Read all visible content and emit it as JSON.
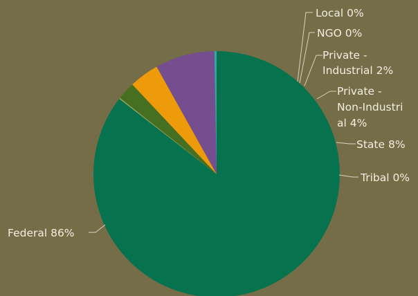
{
  "chart_data": {
    "type": "pie",
    "start_angle_deg": 90,
    "direction": "counterclockwise",
    "slices": [
      {
        "label": "Tribal 0%",
        "value": 0.3,
        "color": "#3ba3a3"
      },
      {
        "label": "State 8%",
        "value": 7.8,
        "color": "#744e8f"
      },
      {
        "label": "Private - Non-Industrial 4%",
        "value": 3.9,
        "color": "#ee9b0b"
      },
      {
        "label": "Private - Industrial 2%",
        "value": 2.3,
        "color": "#476f22"
      },
      {
        "label": "NGO 0%",
        "value": 0.1,
        "color": "#5a7a2a"
      },
      {
        "label": "Local 0%",
        "value": 0.1,
        "color": "#a7b86b"
      },
      {
        "label": "Federal 86%",
        "value": 85.5,
        "color": "#06724e"
      }
    ],
    "labels": {
      "tribal": "Tribal 0%",
      "state": "State 8%",
      "nonind_1": "Private -",
      "nonind_2": "Non-Industri",
      "nonind_3": "al 4%",
      "ind_1": "Private -",
      "ind_2": "Industrial 2%",
      "ngo": "NGO 0%",
      "local": "Local 0%",
      "federal": "Federal 86%"
    },
    "colors": {
      "background": "#756d47",
      "label_text": "#f2efe2",
      "leader_line": "#d9d4c0"
    }
  }
}
